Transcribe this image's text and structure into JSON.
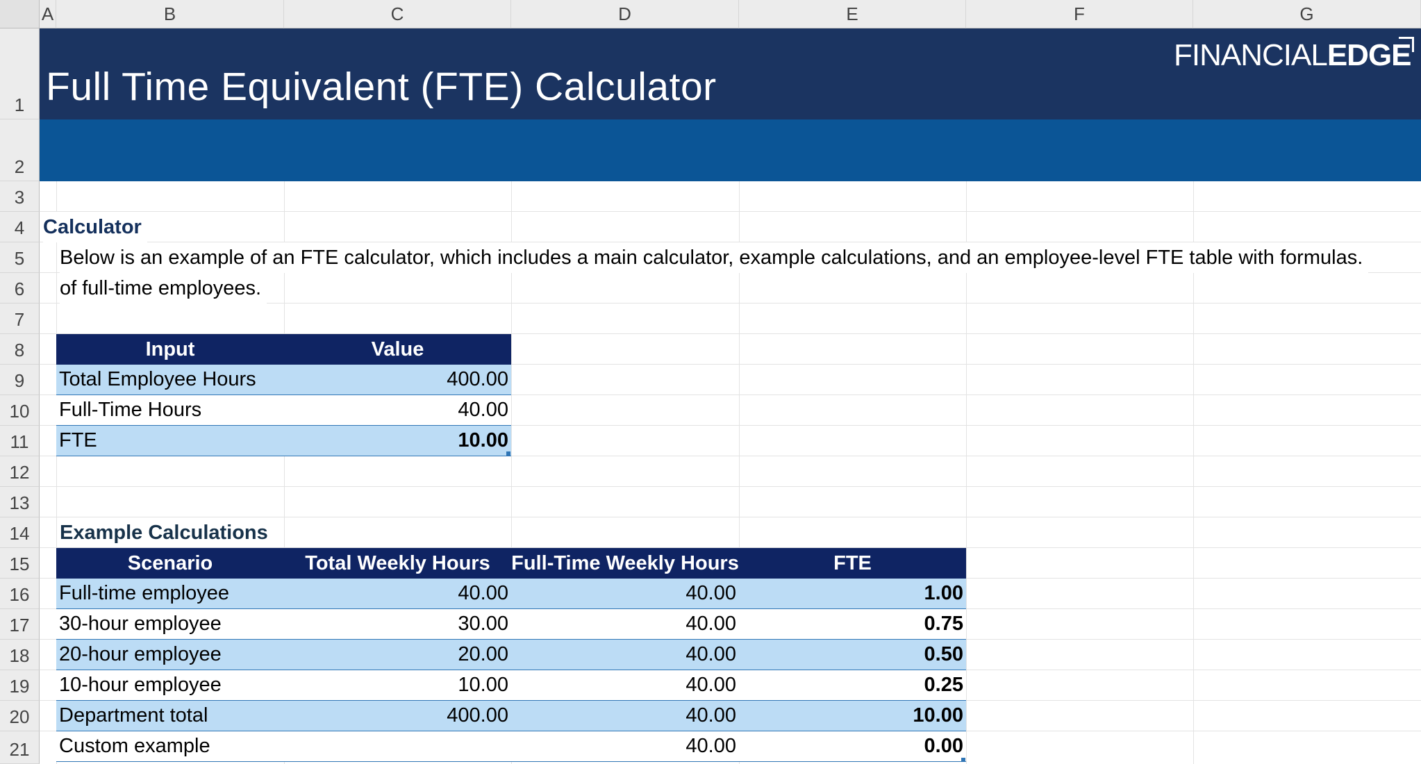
{
  "columns": [
    "A",
    "B",
    "C",
    "D",
    "E",
    "F",
    "G"
  ],
  "rows": [
    "1",
    "2",
    "3",
    "4",
    "5",
    "6",
    "7",
    "8",
    "9",
    "10",
    "11",
    "12",
    "13",
    "14",
    "15",
    "16",
    "17",
    "18",
    "19",
    "20",
    "21"
  ],
  "banner": {
    "title": "Full Time Equivalent (FTE) Calculator",
    "logo_light": "FINANCIAL",
    "logo_bold": "EDGE"
  },
  "calculator": {
    "heading": "Calculator",
    "description_line1": "Below is an example of an FTE calculator, which includes a main calculator, example calculations, and an employee-level FTE table with formulas.",
    "description_line2": "of full-time employees.",
    "headers": [
      "Input",
      "Value"
    ],
    "rows": [
      {
        "label": "Total Employee Hours",
        "value": "400.00"
      },
      {
        "label": "Full-Time Hours",
        "value": "40.00"
      },
      {
        "label": "FTE",
        "value": "10.00"
      }
    ]
  },
  "examples": {
    "heading": "Example Calculations",
    "headers": [
      "Scenario",
      "Total Weekly Hours",
      "Full-Time Weekly Hours",
      "FTE"
    ],
    "rows": [
      {
        "scenario": "Full-time employee",
        "total": "40.00",
        "fulltime": "40.00",
        "fte": "1.00"
      },
      {
        "scenario": "30-hour employee",
        "total": "30.00",
        "fulltime": "40.00",
        "fte": "0.75"
      },
      {
        "scenario": "20-hour employee",
        "total": "20.00",
        "fulltime": "40.00",
        "fte": "0.50"
      },
      {
        "scenario": "10-hour employee",
        "total": "10.00",
        "fulltime": "40.00",
        "fte": "0.25"
      },
      {
        "scenario": "Department total",
        "total": "400.00",
        "fulltime": "40.00",
        "fte": "10.00"
      },
      {
        "scenario": "Custom example",
        "total": "",
        "fulltime": "40.00",
        "fte": "0.00"
      }
    ]
  },
  "colors": {
    "banner_dark": "#1b3461",
    "banner_blue": "#0b5596",
    "table_header": "#0f2463",
    "row_highlight": "#bcdcf5"
  }
}
